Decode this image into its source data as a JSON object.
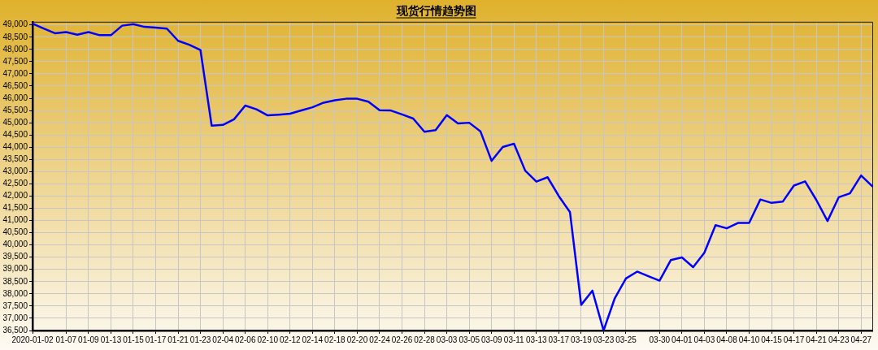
{
  "chart_data": {
    "type": "line",
    "title": "现货行情趋势图",
    "categories": [
      "2020-01-02",
      null,
      null,
      "01-07",
      null,
      "01-09",
      null,
      "01-13",
      null,
      "01-15",
      null,
      "01-17",
      null,
      "01-21",
      null,
      "01-23",
      null,
      "02-04",
      null,
      "02-06",
      null,
      "02-10",
      null,
      "02-12",
      null,
      "02-14",
      null,
      "02-18",
      null,
      "02-20",
      null,
      "02-24",
      null,
      "02-26",
      null,
      "02-28",
      null,
      "03-03",
      null,
      "03-05",
      null,
      "03-09",
      null,
      "03-11",
      null,
      "03-13",
      null,
      "03-17",
      null,
      "03-19",
      null,
      "03-23",
      null,
      "03-25",
      null,
      null,
      "03-30",
      null,
      "04-01",
      null,
      "04-03",
      null,
      "04-08",
      null,
      "04-10",
      null,
      "04-15",
      null,
      "04-17",
      null,
      "04-21",
      null,
      "04-23",
      null,
      "04-27",
      null
    ],
    "values": [
      49050,
      48850,
      48660,
      48710,
      48600,
      48710,
      48580,
      48580,
      48970,
      49030,
      48920,
      48890,
      48850,
      48350,
      48190,
      47970,
      44880,
      44910,
      45140,
      45700,
      45550,
      45300,
      45330,
      45370,
      45500,
      45630,
      45820,
      45920,
      45980,
      45980,
      45860,
      45510,
      45500,
      45340,
      45170,
      44630,
      44700,
      45310,
      44970,
      45000,
      44650,
      43440,
      44010,
      44140,
      43040,
      42590,
      42770,
      42000,
      41340,
      37550,
      38130,
      36500,
      37820,
      38630,
      38910,
      38720,
      38540,
      39380,
      39490,
      39090,
      39680,
      40810,
      40680,
      40900,
      40900,
      41860,
      41720,
      41770,
      42430,
      42600,
      41840,
      40980,
      41950,
      42110,
      42840,
      42400
    ],
    "color": "#0000ff",
    "ylim": [
      36500,
      49130
    ],
    "yticks": [
      {
        "value": 36500,
        "label": "36,500"
      },
      {
        "value": 37000,
        "label": "37,000"
      },
      {
        "value": 37500,
        "label": "37,500"
      },
      {
        "value": 38000,
        "label": "38,000"
      },
      {
        "value": 38500,
        "label": "38,500"
      },
      {
        "value": 39000,
        "label": "39,000"
      },
      {
        "value": 39500,
        "label": "39,500"
      },
      {
        "value": 40000,
        "label": "40,000"
      },
      {
        "value": 40500,
        "label": "40,500"
      },
      {
        "value": 41000,
        "label": "41,000"
      },
      {
        "value": 41500,
        "label": "41,500"
      },
      {
        "value": 42000,
        "label": "42,000"
      },
      {
        "value": 42500,
        "label": "42,500"
      },
      {
        "value": 43000,
        "label": "43,000"
      },
      {
        "value": 43500,
        "label": "43,500"
      },
      {
        "value": 44000,
        "label": "44,000"
      },
      {
        "value": 44500,
        "label": "44,500"
      },
      {
        "value": 45000,
        "label": "45,000"
      },
      {
        "value": 45500,
        "label": "45,500"
      },
      {
        "value": 46000,
        "label": "46,000"
      },
      {
        "value": 46500,
        "label": "46,500"
      },
      {
        "value": 47000,
        "label": "47,000"
      },
      {
        "value": 47500,
        "label": "47,500"
      },
      {
        "value": 48000,
        "label": "48,000"
      },
      {
        "value": 48500,
        "label": "48,500"
      },
      {
        "value": 49000,
        "label": "49,000"
      }
    ],
    "grid": true,
    "line_style": "solid"
  }
}
